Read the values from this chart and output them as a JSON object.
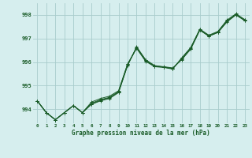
{
  "xlabel": "Graphe pression niveau de la mer (hPa)",
  "background_color": "#d6eeee",
  "grid_color": "#a8cccc",
  "line_color": "#1a5c28",
  "ylim": [
    993.4,
    998.5
  ],
  "xlim": [
    -0.5,
    23.5
  ],
  "yticks": [
    994,
    995,
    996,
    997,
    998
  ],
  "xtick_labels": [
    "0",
    "1",
    "2",
    "3",
    "4",
    "5",
    "6",
    "7",
    "8",
    "9",
    "10",
    "11",
    "12",
    "13",
    "14",
    "15",
    "16",
    "17",
    "18",
    "19",
    "20",
    "21",
    "22",
    "23"
  ],
  "series1": [
    994.35,
    993.85,
    993.55,
    993.85,
    994.15,
    993.85,
    994.2,
    994.35,
    994.45,
    994.7,
    995.85,
    996.65,
    996.1,
    995.85,
    995.8,
    995.75,
    996.1,
    996.55,
    997.35,
    997.1,
    997.25,
    997.7,
    998.0,
    997.75
  ],
  "series2": [
    994.35,
    993.85,
    993.55,
    993.85,
    994.15,
    993.85,
    994.25,
    994.4,
    994.5,
    994.75,
    995.9,
    996.6,
    996.05,
    995.82,
    995.78,
    995.72,
    996.15,
    996.6,
    997.38,
    997.12,
    997.28,
    997.75,
    998.02,
    997.78
  ],
  "series3": [
    994.35,
    993.85,
    993.55,
    993.85,
    994.15,
    993.85,
    994.22,
    994.38,
    994.48,
    994.72,
    995.87,
    996.62,
    996.07,
    995.83,
    995.79,
    995.73,
    996.12,
    996.57,
    997.36,
    997.1,
    997.26,
    997.72,
    998.01,
    997.76
  ],
  "series4": [
    994.35,
    993.85,
    993.55,
    993.85,
    994.15,
    993.85,
    994.3,
    994.45,
    994.55,
    994.78,
    995.92,
    996.58,
    996.03,
    995.8,
    995.77,
    995.7,
    996.18,
    996.62,
    997.4,
    997.14,
    997.3,
    997.78,
    998.05,
    997.8
  ]
}
